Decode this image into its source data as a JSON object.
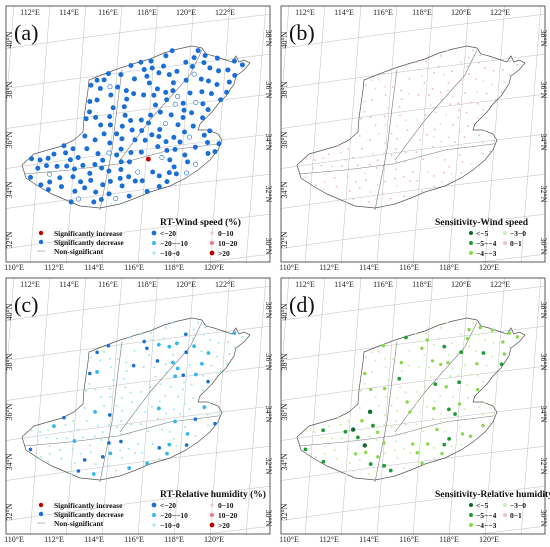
{
  "colors": {
    "sig_increase": "#c00000",
    "sig_decrease": "#1a6fd6",
    "cat_lt_m20": "#1a6fd6",
    "cat_m20_m10": "#33b8ee",
    "cat_m10_0": "#9fe6f5",
    "cat_0_10": "#f4c7cd",
    "cat_10_20": "#f07886",
    "cat_gt20": "#c00000",
    "sens_lt_m5": "#0a6b2a",
    "sens_m5_m4": "#1f9c35",
    "sens_m4_m3": "#86d94a",
    "sens_m3_0": "#c9f0b0",
    "sens_0_1": "#e8c4c8"
  },
  "axes": {
    "lon_bottom": [
      "110°E",
      "112°E",
      "114°E",
      "116°E",
      "118°E",
      "120°E"
    ],
    "lon_top": [
      "112°E",
      "114°E",
      "116°E",
      "118°E",
      "120°E",
      "122°E"
    ],
    "lat_left": [
      "32°N",
      "34°N",
      "36°N",
      "38°N",
      "40°N"
    ],
    "lat_right": [
      "30°N",
      "32°N",
      "34°N",
      "36°N",
      "38°N"
    ]
  },
  "panels": [
    {
      "letter": "(a)",
      "legend_type": "rt",
      "legend_title": "RT-Wind speed (%)",
      "sig_labels": [
        "Significantly increase",
        "Significantly decrease",
        "Non-significant"
      ],
      "cat_labels": [
        "<−20",
        "−20−−10",
        "−10−0",
        "0−10",
        "10−20",
        ">20"
      ],
      "scheme": "wind_rt"
    },
    {
      "letter": "(b)",
      "legend_type": "sens",
      "legend_title": "Sensitivity-Wind speed",
      "cat_labels": [
        "<−5",
        "−5−−4",
        "−4−−3",
        "−3−0",
        "0−1"
      ],
      "scheme": "wind_sens"
    },
    {
      "letter": "(c)",
      "legend_type": "rt",
      "legend_title": "RT-Relative humidity (%)",
      "sig_labels": [
        "Significantly increase",
        "Significantly decrease",
        "Non-significant"
      ],
      "cat_labels": [
        "<−20",
        "−20−−10",
        "−10−0",
        "0−10",
        "10−20",
        ">20"
      ],
      "scheme": "rh_rt"
    },
    {
      "letter": "(d)",
      "legend_type": "sens",
      "legend_title": "Sensitivity-Relative humidity",
      "cat_labels": [
        "<−5",
        "−5−−4",
        "−4−−3",
        "−3−0",
        "0−1"
      ],
      "scheme": "rh_sens"
    }
  ]
}
